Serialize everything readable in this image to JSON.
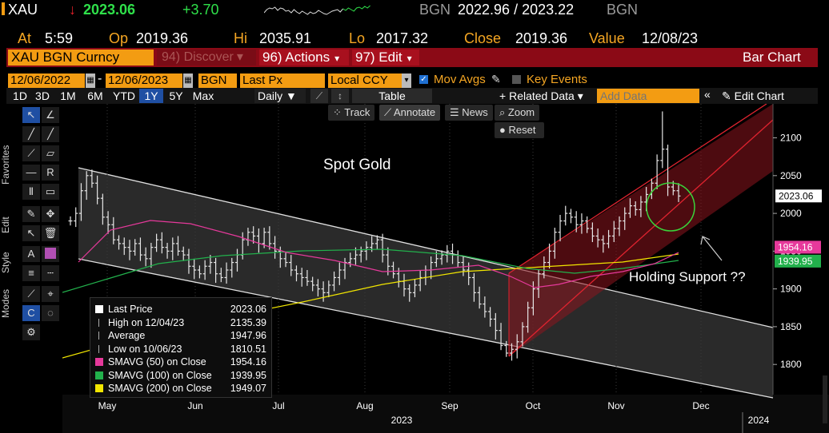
{
  "ticker_row": {
    "ticker": "XAU",
    "arrow": "↓",
    "last": "2023.06",
    "change": "+3.70",
    "source": "BGN",
    "bid_ask": "2022.96 / 2023.22",
    "source2": "BGN"
  },
  "quote_row": {
    "at_label": "At",
    "at_value": "5:59",
    "op_label": "Op",
    "op_value": "2019.36",
    "hi_label": "Hi",
    "hi_value": "2035.91",
    "lo_label": "Lo",
    "lo_value": "2017.32",
    "close_label": "Close",
    "close_value": "2019.36",
    "value_label": "Value",
    "value_value": "12/08/23"
  },
  "command_row": {
    "security": "XAU BGN Curncy",
    "discover": "94) Discover",
    "actions": "96) Actions",
    "edit": "97) Edit",
    "title": "Bar Chart"
  },
  "settings_row": {
    "start_date": "12/06/2022",
    "end_date": "12/06/2023",
    "source": "BGN",
    "field": "Last Px",
    "currency": "Local CCY",
    "mov_avgs": "Mov Avgs",
    "key_events": "Key Events"
  },
  "period_row": {
    "tabs": [
      "1D",
      "3D",
      "1M",
      "6M",
      "YTD",
      "1Y",
      "5Y",
      "Max"
    ],
    "selected": "1Y",
    "frequency": "Daily",
    "table": "Table",
    "related": "Related Data",
    "add_data_placeholder": "Add Data",
    "edit_chart": "Edit Chart"
  },
  "chart_tools": {
    "track": "Track",
    "annotate": "Annotate",
    "news": "News",
    "zoom": "Zoom",
    "reset": "Reset"
  },
  "side_tabs": [
    "Favorites",
    "Edit",
    "Style",
    "Modes"
  ],
  "annotations": {
    "title_text": "Spot Gold",
    "support_text": "Holding Support ??"
  },
  "chart_data": {
    "type": "bar",
    "y_ticks": [
      "2100",
      "2050",
      "2000",
      "1950",
      "1900",
      "1850",
      "1800"
    ],
    "ylim": [
      1760,
      2145
    ],
    "x_ticks": [
      "May",
      "Jun",
      "Jul",
      "Aug",
      "Sep",
      "Oct",
      "Nov",
      "Dec"
    ],
    "year_labels": [
      "2023",
      "2024"
    ],
    "price_tag": "2023.06",
    "ma_tags": [
      "1954.16",
      "1939.95"
    ],
    "legend": [
      {
        "label": "Last Price",
        "value": "2023.06",
        "color": "#ffffff"
      },
      {
        "label": "High on 12/04/23",
        "value": "2135.39",
        "color": "#ffffff"
      },
      {
        "label": "Average",
        "value": "1947.96",
        "color": "#ffffff"
      },
      {
        "label": "Low on 10/06/23",
        "value": "1810.51",
        "color": "#ffffff"
      },
      {
        "label": "SMAVG (50)  on Close",
        "value": "1954.16",
        "color": "#e6399b"
      },
      {
        "label": "SMAVG (100)  on Close",
        "value": "1939.95",
        "color": "#22b14c"
      },
      {
        "label": "SMAVG (200)  on Close",
        "value": "1949.07",
        "color": "#f2e600"
      }
    ],
    "closes": [
      1990,
      2000,
      2030,
      2050,
      2040,
      2020,
      1995,
      1985,
      1965,
      1960,
      1955,
      1950,
      1960,
      1945,
      1940,
      1955,
      1965,
      1955,
      1950,
      1960,
      1950,
      1945,
      1930,
      1925,
      1920,
      1930,
      1935,
      1920,
      1915,
      1925,
      1935,
      1945,
      1965,
      1975,
      1970,
      1960,
      1975,
      1960,
      1950,
      1940,
      1935,
      1925,
      1920,
      1915,
      1910,
      1905,
      1900,
      1895,
      1905,
      1915,
      1925,
      1935,
      1940,
      1945,
      1950,
      1955,
      1960,
      1965,
      1945,
      1930,
      1920,
      1910,
      1900,
      1895,
      1905,
      1915,
      1925,
      1935,
      1940,
      1945,
      1950,
      1945,
      1935,
      1925,
      1915,
      1895,
      1880,
      1870,
      1860,
      1845,
      1825,
      1815,
      1820,
      1830,
      1850,
      1875,
      1900,
      1920,
      1935,
      1950,
      1975,
      1990,
      2000,
      1995,
      1985,
      1990,
      1980,
      1970,
      1965,
      1960,
      1970,
      1980,
      1990,
      2000,
      2010,
      2005,
      2015,
      2025,
      2040,
      2070,
      2085,
      2035,
      2030,
      2023
    ],
    "highs_note": "OHLC bars reconstructed from closes"
  }
}
